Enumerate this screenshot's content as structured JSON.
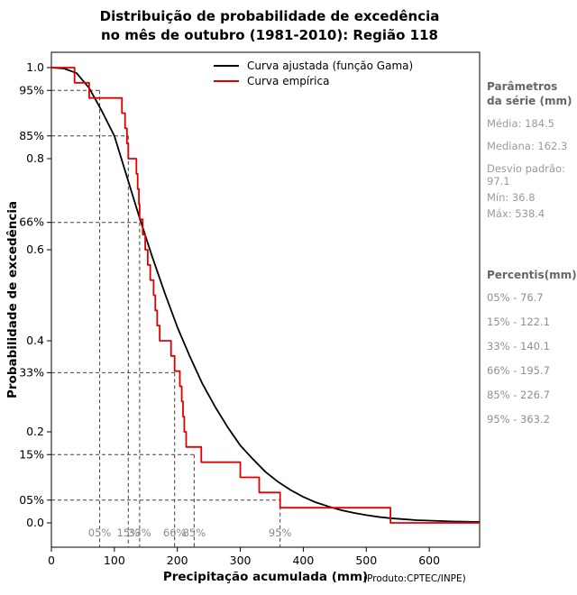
{
  "title": {
    "line1": "Distribuição de probabilidade de excedência",
    "line2": "no mês de outubro (1981-2010): Região 118"
  },
  "axes": {
    "x_label": "Precipitação acumulada (mm)",
    "x_sublabel": "(Produto:CPTEC/INPE)",
    "y_label": "Probabilidade de excedência"
  },
  "legend": {
    "items": [
      {
        "label": "Curva ajustada (função Gama)",
        "color": "#000000"
      },
      {
        "label": "Curva empírica",
        "color": "#e00000"
      }
    ]
  },
  "side_panel": {
    "params_heading": "Parâmetros da série (mm)",
    "params": [
      "Média: 184.5",
      "Mediana: 162.3",
      "Desvio padrão: 97.1",
      "Mín: 36.8",
      "Máx: 538.4"
    ],
    "percentis_heading": "Percentis(mm)",
    "percentis": [
      "05% - 76.7",
      "15% - 122.1",
      "33% - 140.1",
      "66% - 195.7",
      "85% - 226.7",
      "95% - 363.2"
    ]
  },
  "chart_data": {
    "type": "line",
    "title": "Distribuição de probabilidade de excedência no mês de outubro (1981-2010): Região 118",
    "xlabel": "Precipitação acumulada (mm)",
    "ylabel": "Probabilidade de excedência",
    "x_range": [
      0,
      680
    ],
    "y_range": [
      0,
      1
    ],
    "grid": false,
    "legend_position": "top-center-inside",
    "x_ticks": [
      0,
      100,
      200,
      300,
      400,
      500,
      600
    ],
    "y_ticks": [
      {
        "v": 1.0,
        "t": "1.0"
      },
      {
        "v": 0.95,
        "t": "95%"
      },
      {
        "v": 0.85,
        "t": "85%"
      },
      {
        "v": 0.8,
        "t": "0.8"
      },
      {
        "v": 0.66,
        "t": "66%"
      },
      {
        "v": 0.6,
        "t": "0.6"
      },
      {
        "v": 0.4,
        "t": "0.4"
      },
      {
        "v": 0.33,
        "t": "33%"
      },
      {
        "v": 0.2,
        "t": "0.2"
      },
      {
        "v": 0.15,
        "t": "15%"
      },
      {
        "v": 0.05,
        "t": "05%"
      },
      {
        "v": 0.0,
        "t": "0.0"
      }
    ],
    "series": [
      {
        "name": "Curva ajustada (função Gama)",
        "color": "#000000",
        "style": "smooth",
        "points": [
          [
            0,
            1.0
          ],
          [
            20,
            0.998
          ],
          [
            40,
            0.988
          ],
          [
            60,
            0.955
          ],
          [
            80,
            0.905
          ],
          [
            100,
            0.85
          ],
          [
            120,
            0.76
          ],
          [
            140,
            0.67
          ],
          [
            160,
            0.585
          ],
          [
            180,
            0.505
          ],
          [
            200,
            0.43
          ],
          [
            220,
            0.365
          ],
          [
            240,
            0.305
          ],
          [
            260,
            0.255
          ],
          [
            280,
            0.21
          ],
          [
            300,
            0.17
          ],
          [
            320,
            0.14
          ],
          [
            340,
            0.112
          ],
          [
            360,
            0.09
          ],
          [
            380,
            0.072
          ],
          [
            400,
            0.057
          ],
          [
            420,
            0.045
          ],
          [
            440,
            0.036
          ],
          [
            460,
            0.028
          ],
          [
            480,
            0.022
          ],
          [
            500,
            0.017
          ],
          [
            520,
            0.013
          ],
          [
            540,
            0.01
          ],
          [
            560,
            0.008
          ],
          [
            580,
            0.006
          ],
          [
            600,
            0.005
          ],
          [
            640,
            0.003
          ],
          [
            680,
            0.002
          ]
        ]
      },
      {
        "name": "Curva empírica",
        "color": "#e00000",
        "style": "step",
        "start": [
          0,
          1.0
        ],
        "end_x": 680,
        "points": [
          [
            36.8,
            0.9667
          ],
          [
            60,
            0.9333
          ],
          [
            112,
            0.9
          ],
          [
            117,
            0.8667
          ],
          [
            120,
            0.8333
          ],
          [
            122.1,
            0.8
          ],
          [
            135,
            0.7667
          ],
          [
            137,
            0.7333
          ],
          [
            139,
            0.7
          ],
          [
            140.1,
            0.6667
          ],
          [
            145,
            0.6333
          ],
          [
            149,
            0.6
          ],
          [
            153,
            0.5667
          ],
          [
            157,
            0.5333
          ],
          [
            162.3,
            0.5
          ],
          [
            165,
            0.4667
          ],
          [
            168,
            0.4333
          ],
          [
            172,
            0.4
          ],
          [
            190,
            0.3667
          ],
          [
            195.7,
            0.3333
          ],
          [
            204,
            0.3
          ],
          [
            207,
            0.2667
          ],
          [
            209,
            0.2333
          ],
          [
            211,
            0.2
          ],
          [
            214,
            0.1667
          ],
          [
            238,
            0.1333
          ],
          [
            300,
            0.1
          ],
          [
            330,
            0.0667
          ],
          [
            363.2,
            0.0333
          ],
          [
            538.4,
            0.0
          ]
        ]
      }
    ],
    "guides": [
      {
        "label": "05%",
        "x": 76.7,
        "exceedance": 0.95
      },
      {
        "label": "15%",
        "x": 122.1,
        "exceedance": 0.85
      },
      {
        "label": "33%",
        "x": 140.1,
        "exceedance": 0.66
      },
      {
        "label": "66%",
        "x": 195.7,
        "exceedance": 0.33
      },
      {
        "label": "85%",
        "x": 226.7,
        "exceedance": 0.15
      },
      {
        "label": "95%",
        "x": 363.2,
        "exceedance": 0.05
      }
    ],
    "guide_color": "#404040",
    "guide_label_color": "#8a8a8a"
  }
}
